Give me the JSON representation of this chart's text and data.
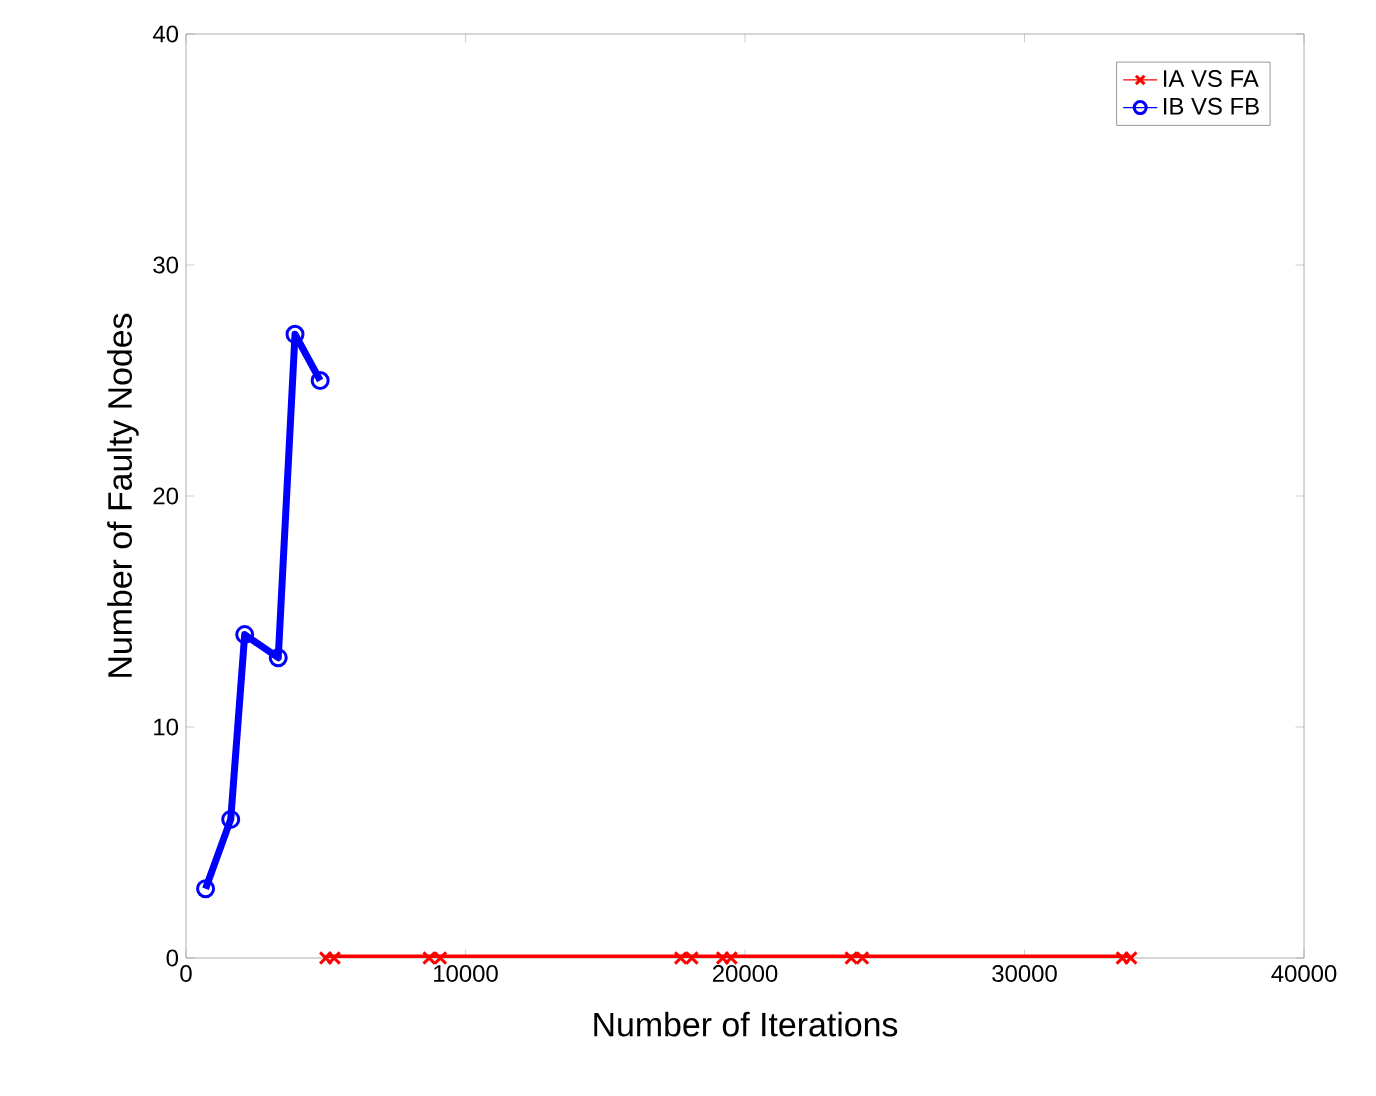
{
  "chart_data": {
    "type": "line",
    "xlabel": "Number of Iterations",
    "ylabel": "Number of Faulty Nodes",
    "xlim": [
      0,
      40000
    ],
    "ylim": [
      0,
      40
    ],
    "xticks": [
      0,
      10000,
      20000,
      30000,
      40000
    ],
    "yticks": [
      0,
      10,
      20,
      30,
      40
    ],
    "legend": "top right",
    "grid": false,
    "series": [
      {
        "name": "IA VS FA",
        "color": "#ff0000",
        "marker": "cross",
        "x": [
          5000,
          5300,
          8700,
          9100,
          17700,
          18100,
          19200,
          19500,
          23800,
          24200,
          33500,
          33800
        ],
        "values": [
          0,
          0,
          0,
          0,
          0,
          0,
          0,
          0,
          0,
          0,
          0,
          0
        ]
      },
      {
        "name": "IB VS FB",
        "color": "#0000ff",
        "marker": "circle",
        "x": [
          700,
          1600,
          2100,
          3300,
          3900,
          4800
        ],
        "values": [
          3,
          6,
          14,
          13,
          27,
          25
        ]
      }
    ]
  }
}
